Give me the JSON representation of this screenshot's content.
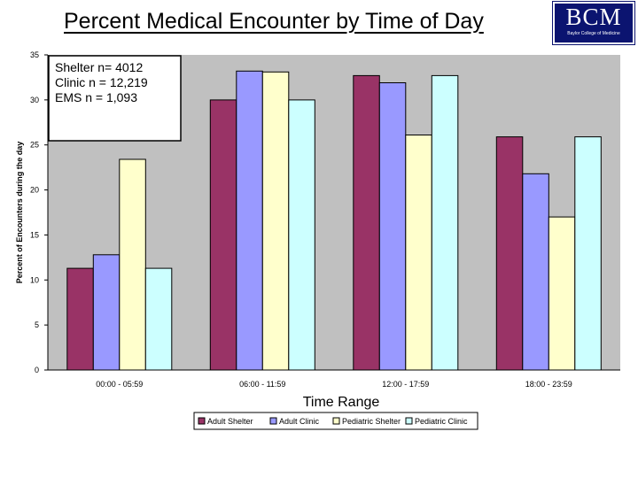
{
  "slide": {
    "title": "Percent Medical Encounter by Time of Day",
    "logo": {
      "text": "BCM",
      "subtext": "Baylor College of Medicine"
    }
  },
  "chart_data": {
    "type": "bar",
    "title": "",
    "xlabel": "Time Range",
    "ylabel": "Percent of Encounters during the day",
    "ylim": [
      0,
      35
    ],
    "yticks": [
      0,
      5,
      10,
      15,
      20,
      25,
      30,
      35
    ],
    "categories": [
      "00:00 - 05:59",
      "06:00 - 11:59",
      "12:00 - 17:59",
      "18:00 - 23:59"
    ],
    "series": [
      {
        "name": "Adult Shelter",
        "color": "#993366",
        "values": [
          11.3,
          30.0,
          32.7,
          25.9
        ]
      },
      {
        "name": "Adult Clinic",
        "color": "#9999ff",
        "values": [
          12.8,
          33.2,
          31.9,
          21.8
        ]
      },
      {
        "name": "Pediatric Shelter",
        "color": "#ffffcc",
        "values": [
          23.4,
          33.1,
          26.1,
          17.0
        ]
      },
      {
        "name": "Pediatric Clinic",
        "color": "#ccffff",
        "values": [
          11.3,
          30.0,
          32.7,
          25.9
        ]
      }
    ],
    "annotation": [
      "Shelter n= 4012",
      "Clinic n = 12,219",
      "EMS n = 1,093"
    ],
    "plot_background": "#c0c0c0",
    "grid": false,
    "legend_position": "bottom"
  }
}
